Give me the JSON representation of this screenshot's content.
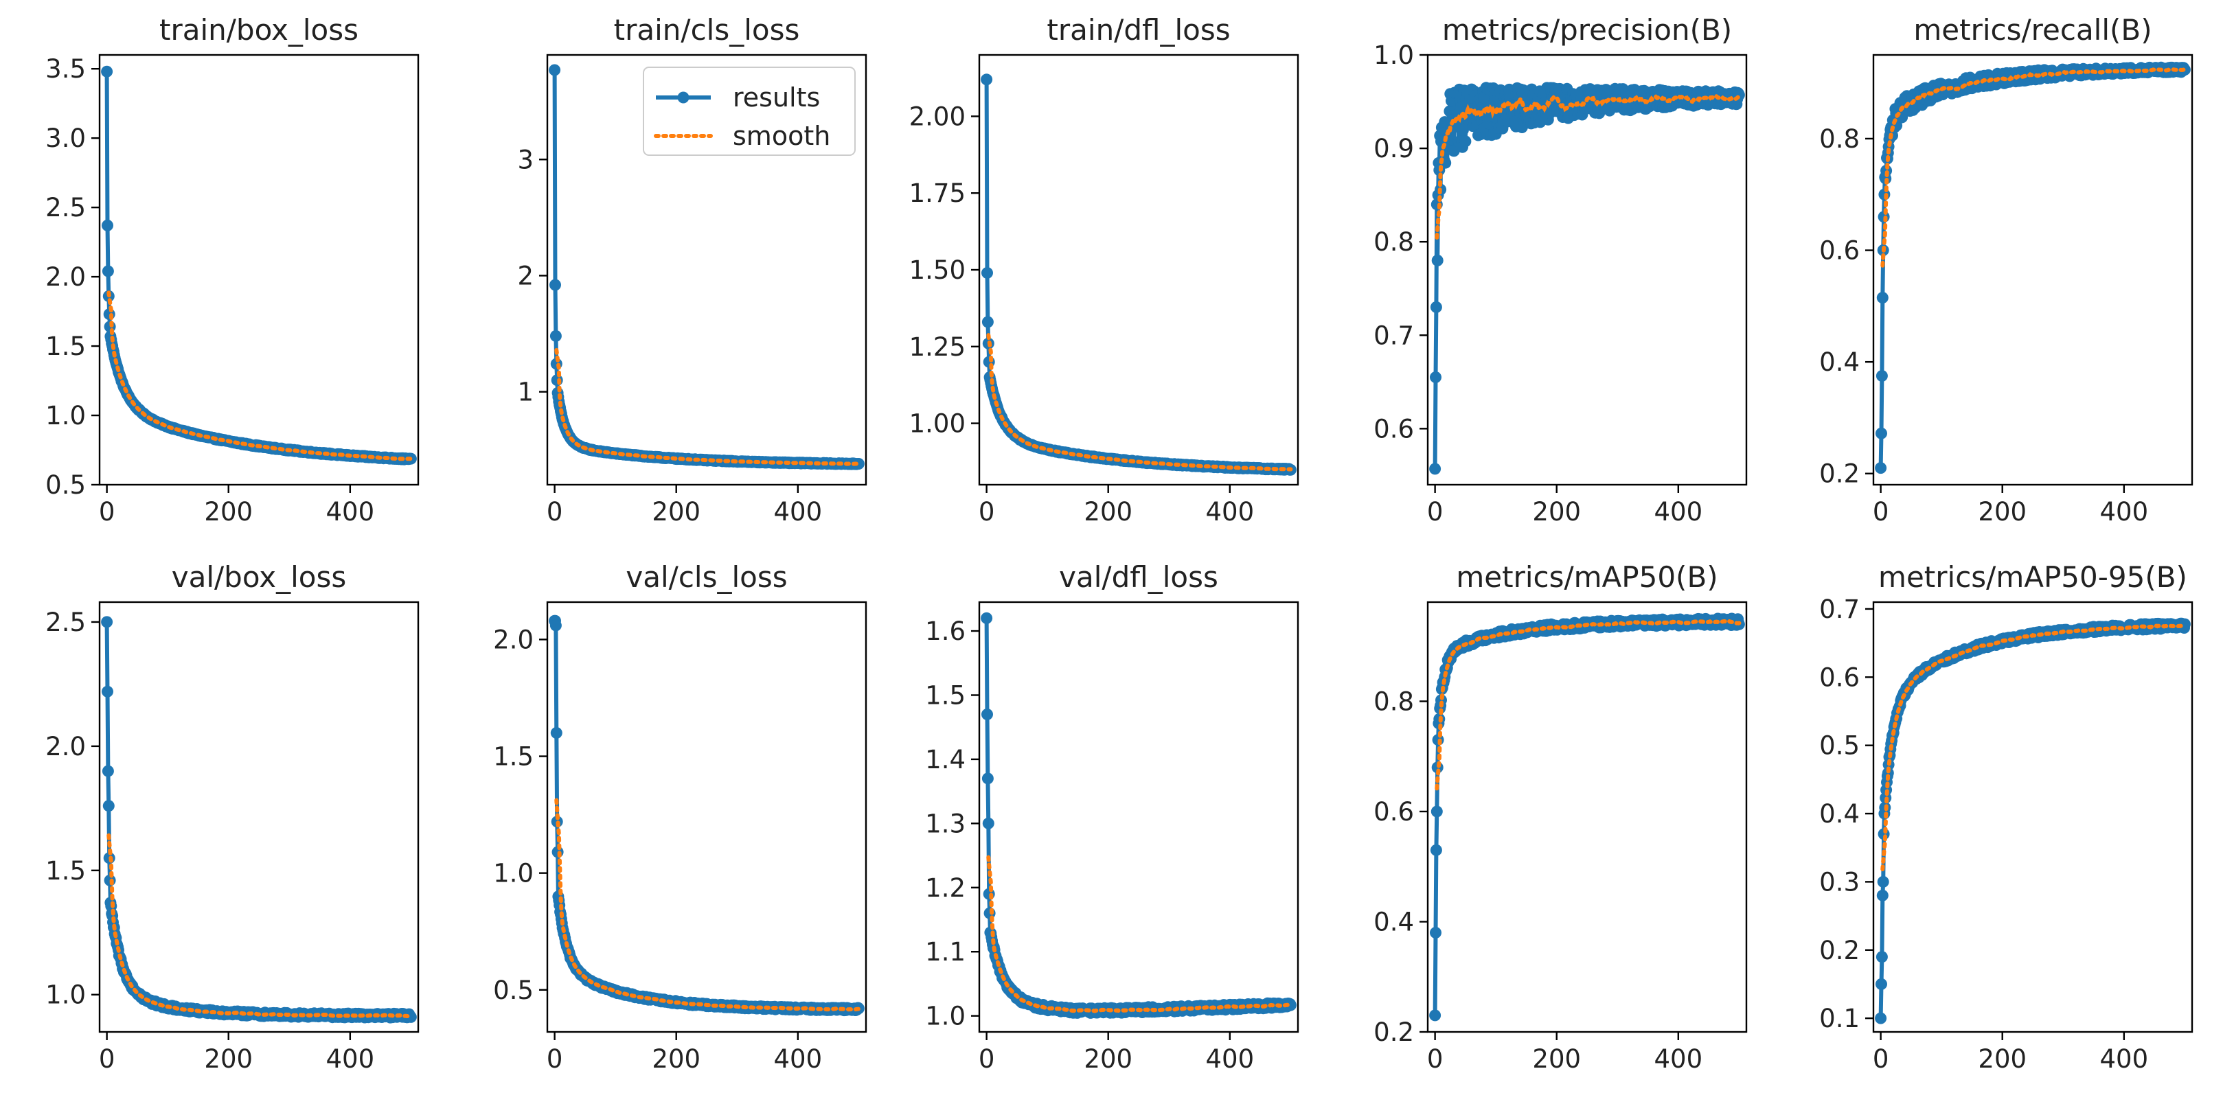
{
  "colors": {
    "results": "#1f77b4",
    "smooth": "#ff7f0e",
    "axes": "#000000",
    "background": "#ffffff"
  },
  "legend": {
    "results_label": "results",
    "smooth_label": "smooth",
    "placement": "upper-right",
    "panel": "train/cls_loss"
  },
  "chart_data": [
    {
      "type": "line",
      "title": "train/box_loss",
      "xlim": [
        -12,
        512
      ],
      "ylim": [
        0.5,
        3.6
      ],
      "xticks": [
        0,
        200,
        400
      ],
      "xtick_labels": [
        "0",
        "200",
        "400"
      ],
      "yticks": [
        0.5,
        1.0,
        1.5,
        2.0,
        2.5,
        3.0,
        3.5
      ],
      "ytick_labels": [
        "0.5",
        "1.0",
        "1.5",
        "2.0",
        "2.5",
        "3.0",
        "3.5"
      ],
      "curve": {
        "epochs": 500,
        "start": [
          3.48,
          2.37,
          2.04,
          1.86,
          1.73,
          1.64,
          1.57
        ],
        "final": 0.64,
        "k": 22,
        "k2": 220,
        "w": 0.55,
        "noise": 0.005
      }
    },
    {
      "type": "line",
      "title": "train/cls_loss",
      "xlim": [
        -12,
        512
      ],
      "ylim": [
        0.2,
        3.9
      ],
      "xticks": [
        0,
        200,
        400
      ],
      "xtick_labels": [
        "0",
        "200",
        "400"
      ],
      "yticks": [
        1,
        2,
        3
      ],
      "ytick_labels": [
        "1",
        "2",
        "3"
      ],
      "curve": {
        "epochs": 500,
        "start": [
          3.77,
          1.92,
          1.48,
          1.24,
          1.1,
          0.99
        ],
        "final": 0.37,
        "k": 12,
        "k2": 170,
        "w": 0.72,
        "noise": 0.004
      }
    },
    {
      "type": "line",
      "title": "train/dfl_loss",
      "xlim": [
        -12,
        512
      ],
      "ylim": [
        0.8,
        2.2
      ],
      "xticks": [
        0,
        200,
        400
      ],
      "xtick_labels": [
        "0",
        "200",
        "400"
      ],
      "yticks": [
        1.0,
        1.25,
        1.5,
        1.75,
        2.0
      ],
      "ytick_labels": [
        "1.00",
        "1.25",
        "1.50",
        "1.75",
        "2.00"
      ],
      "curve": {
        "epochs": 500,
        "start": [
          2.12,
          1.49,
          1.33,
          1.26,
          1.2,
          1.15
        ],
        "final": 0.84,
        "k": 20,
        "k2": 200,
        "w": 0.62,
        "noise": 0.002
      }
    },
    {
      "type": "line",
      "title": "metrics/precision(B)",
      "xlim": [
        -12,
        512
      ],
      "ylim": [
        0.54,
        1.0
      ],
      "xticks": [
        0,
        200,
        400
      ],
      "xtick_labels": [
        "0",
        "200",
        "400"
      ],
      "yticks": [
        0.6,
        0.7,
        0.8,
        0.9,
        1.0
      ],
      "ytick_labels": [
        "0.6",
        "0.7",
        "0.8",
        "0.9",
        "1.0"
      ],
      "curve": {
        "epochs": 500,
        "start": [
          0.557,
          0.655,
          0.73,
          0.84,
          0.78,
          0.85
        ],
        "final": 0.955,
        "k": 7,
        "k2": 140,
        "w": 0.72,
        "noise": 0.035,
        "noise_decay": 230
      }
    },
    {
      "type": "line",
      "title": "metrics/recall(B)",
      "xlim": [
        -12,
        512
      ],
      "ylim": [
        0.18,
        0.95
      ],
      "xticks": [
        0,
        200,
        400
      ],
      "xtick_labels": [
        "0",
        "200",
        "400"
      ],
      "yticks": [
        0.2,
        0.4,
        0.6,
        0.8
      ],
      "ytick_labels": [
        "0.2",
        "0.4",
        "0.6",
        "0.8"
      ],
      "curve": {
        "epochs": 500,
        "start": [
          0.21,
          0.272,
          0.375,
          0.515,
          0.6,
          0.66,
          0.7
        ],
        "final": 0.925,
        "k": 8,
        "k2": 120,
        "w": 0.62,
        "noise": 0.018,
        "noise_decay": 260
      }
    },
    {
      "type": "line",
      "title": "val/box_loss",
      "xlim": [
        -12,
        512
      ],
      "ylim": [
        0.85,
        2.58
      ],
      "xticks": [
        0,
        200,
        400
      ],
      "xtick_labels": [
        "0",
        "200",
        "400"
      ],
      "yticks": [
        1.0,
        1.5,
        2.0,
        2.5
      ],
      "ytick_labels": [
        "1.0",
        "1.5",
        "2.0",
        "2.5"
      ],
      "curve": {
        "epochs": 500,
        "start": [
          2.5,
          2.22,
          1.9,
          1.76,
          1.55,
          1.46,
          1.37
        ],
        "final": 0.915,
        "k": 18,
        "k2": 90,
        "w": 0.78,
        "noise": 0.008
      }
    },
    {
      "type": "line",
      "title": "val/cls_loss",
      "xlim": [
        -12,
        512
      ],
      "ylim": [
        0.32,
        2.16
      ],
      "xticks": [
        0,
        200,
        400
      ],
      "xtick_labels": [
        "0",
        "200",
        "400"
      ],
      "yticks": [
        0.5,
        1.0,
        1.5,
        2.0
      ],
      "ytick_labels": [
        "0.5",
        "1.0",
        "1.5",
        "2.0"
      ],
      "curve": {
        "epochs": 500,
        "start": [
          2.08,
          2.08,
          2.06,
          1.6,
          1.22,
          1.09,
          0.9
        ],
        "final": 0.415,
        "k": 14,
        "k2": 110,
        "w": 0.62,
        "noise": 0.006
      }
    },
    {
      "type": "line",
      "title": "val/dfl_loss",
      "xlim": [
        -12,
        512
      ],
      "ylim": [
        0.975,
        1.645
      ],
      "xticks": [
        0,
        200,
        400
      ],
      "xtick_labels": [
        "0",
        "200",
        "400"
      ],
      "yticks": [
        1.0,
        1.1,
        1.2,
        1.3,
        1.4,
        1.5,
        1.6
      ],
      "ytick_labels": [
        "1.0",
        "1.1",
        "1.2",
        "1.3",
        "1.4",
        "1.5",
        "1.6"
      ],
      "curve": {
        "epochs": 500,
        "start": [
          1.62,
          1.47,
          1.37,
          1.3,
          1.19,
          1.16,
          1.13
        ],
        "final": 1.005,
        "k": 22,
        "k2": 80,
        "w": 0.85,
        "noise": 0.004,
        "rise": 0.012
      }
    },
    {
      "type": "line",
      "title": "metrics/mAP50(B)",
      "xlim": [
        -12,
        512
      ],
      "ylim": [
        0.2,
        0.98
      ],
      "xticks": [
        0,
        200,
        400
      ],
      "xtick_labels": [
        "0",
        "200",
        "400"
      ],
      "yticks": [
        0.2,
        0.4,
        0.6,
        0.8
      ],
      "ytick_labels": [
        "0.2",
        "0.4",
        "0.6",
        "0.8"
      ],
      "curve": {
        "epochs": 500,
        "start": [
          0.23,
          0.38,
          0.53,
          0.6,
          0.68,
          0.73,
          0.76
        ],
        "final": 0.945,
        "k": 9,
        "k2": 110,
        "w": 0.68,
        "noise": 0.006
      }
    },
    {
      "type": "line",
      "title": "metrics/mAP50-95(B)",
      "xlim": [
        -12,
        512
      ],
      "ylim": [
        0.08,
        0.71
      ],
      "xticks": [
        0,
        200,
        400
      ],
      "xtick_labels": [
        "0",
        "200",
        "400"
      ],
      "yticks": [
        0.1,
        0.2,
        0.3,
        0.4,
        0.5,
        0.6,
        0.7
      ],
      "ytick_labels": [
        "0.1",
        "0.2",
        "0.3",
        "0.4",
        "0.5",
        "0.6",
        "0.7"
      ],
      "curve": {
        "epochs": 500,
        "start": [
          0.1,
          0.15,
          0.19,
          0.28,
          0.3,
          0.37,
          0.4
        ],
        "final": 0.678,
        "k": 14,
        "k2": 130,
        "w": 0.6,
        "noise": 0.004
      }
    }
  ]
}
